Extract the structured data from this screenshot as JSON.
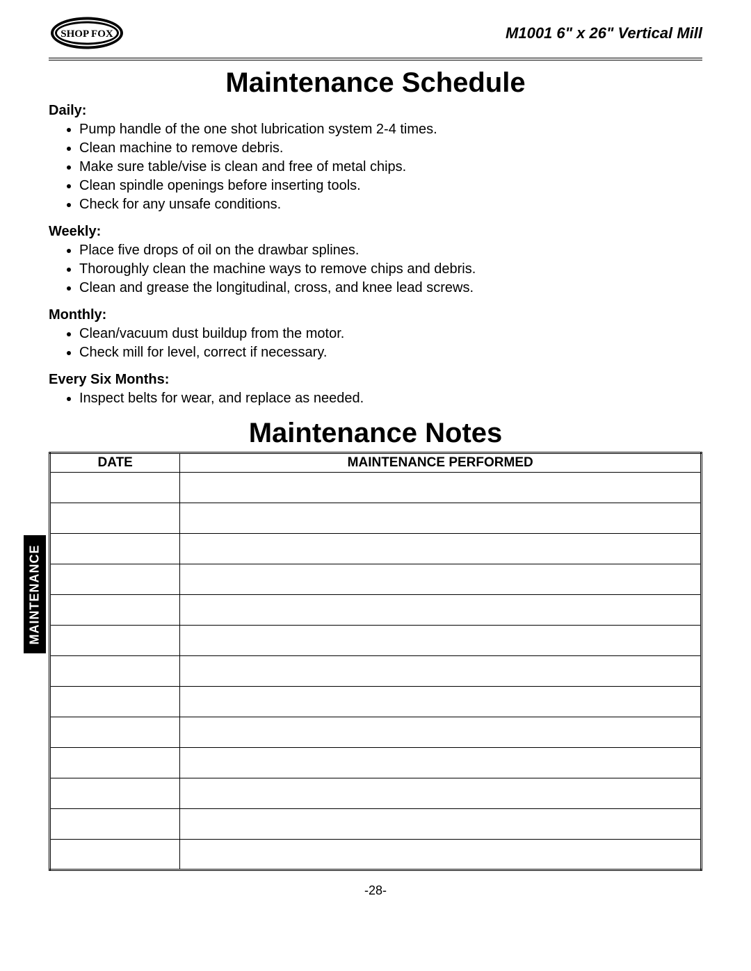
{
  "header": {
    "logo_text": "SHOP FOX",
    "product_line": "M1001 6\" x 26\" Vertical Mill"
  },
  "side_tab": "MAINTENANCE",
  "schedule": {
    "title": "Maintenance Schedule",
    "sections": [
      {
        "heading": "Daily:",
        "items": [
          "Pump handle of the one shot lubrication system 2-4 times.",
          "Clean machine to remove debris.",
          "Make sure table/vise is clean and free of metal chips.",
          "Clean spindle openings before inserting tools.",
          "Check for any unsafe conditions."
        ]
      },
      {
        "heading": "Weekly:",
        "items": [
          "Place five drops of oil on the drawbar splines.",
          "Thoroughly clean the machine ways to remove chips and debris.",
          "Clean and grease the longitudinal, cross, and knee lead screws."
        ]
      },
      {
        "heading": "Monthly:",
        "items": [
          "Clean/vacuum dust buildup from the motor.",
          "Check mill for level, correct if necessary."
        ]
      },
      {
        "heading": "Every Six Months:",
        "items": [
          "Inspect belts for wear, and replace as needed."
        ]
      }
    ]
  },
  "notes": {
    "title": "Maintenance Notes",
    "columns": [
      "DATE",
      "MAINTENANCE PERFORMED"
    ],
    "row_count": 13,
    "column_widths_pct": [
      20,
      80
    ]
  },
  "page_number": "-28-",
  "colors": {
    "text": "#000000",
    "background": "#ffffff",
    "tab_bg": "#000000",
    "tab_text": "#ffffff"
  },
  "typography": {
    "body_fontsize_pt": 15,
    "title_fontsize_pt": 30,
    "heading_weight": "bold",
    "font_family": "Trebuchet MS"
  }
}
